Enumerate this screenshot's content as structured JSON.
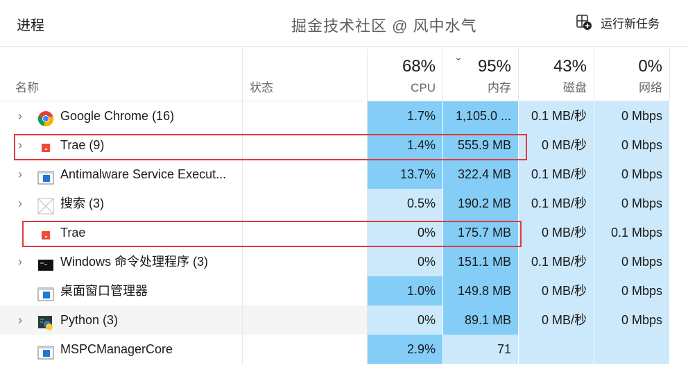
{
  "header": {
    "title": "进程",
    "run_new_task": "运行新任务"
  },
  "columns": {
    "name": {
      "label": "名称"
    },
    "status": {
      "label": "状态"
    },
    "cpu": {
      "pct": "68%",
      "label": "CPU"
    },
    "memory": {
      "pct": "95%",
      "label": "内存",
      "sorted": "descending"
    },
    "disk": {
      "pct": "43%",
      "label": "磁盘"
    },
    "network": {
      "pct": "0%",
      "label": "网络"
    }
  },
  "colors": {
    "heat_high": "#83cdf7",
    "heat_low": "#cbe9fb",
    "highlight_box": "#e0393e"
  },
  "rows": [
    {
      "name": "Google Chrome (16)",
      "icon": "chrome-icon",
      "expandable": true,
      "eco": true,
      "cpu": "1.7%",
      "mem": "1,105.0 ...",
      "disk": "0.1 MB/秒",
      "net": "0 Mbps",
      "heat": [
        "h",
        "h",
        "l",
        "l"
      ]
    },
    {
      "name": "Trae (9)",
      "icon": "trae-icon",
      "expandable": true,
      "cpu": "1.4%",
      "mem": "555.9 MB",
      "disk": "0 MB/秒",
      "net": "0 Mbps",
      "heat": [
        "h",
        "h",
        "l",
        "l"
      ]
    },
    {
      "name": "Antimalware Service Execut...",
      "icon": "app-window-icon",
      "expandable": true,
      "cpu": "13.7%",
      "mem": "322.4 MB",
      "disk": "0.1 MB/秒",
      "net": "0 Mbps",
      "heat": [
        "h",
        "h",
        "l",
        "l"
      ]
    },
    {
      "name": "搜索 (3)",
      "icon": "placeholder-icon",
      "expandable": true,
      "cpu": "0.5%",
      "mem": "190.2 MB",
      "disk": "0.1 MB/秒",
      "net": "0 Mbps",
      "heat": [
        "l",
        "h",
        "l",
        "l"
      ]
    },
    {
      "name": "Trae",
      "icon": "trae-icon",
      "expandable": false,
      "cpu": "0%",
      "mem": "175.7 MB",
      "disk": "0 MB/秒",
      "net": "0.1 Mbps",
      "heat": [
        "l",
        "h",
        "l",
        "l"
      ]
    },
    {
      "name": "Windows 命令处理程序 (3)",
      "icon": "cmd-icon",
      "expandable": true,
      "cpu": "0%",
      "mem": "151.1 MB",
      "disk": "0.1 MB/秒",
      "net": "0 Mbps",
      "heat": [
        "l",
        "h",
        "l",
        "l"
      ]
    },
    {
      "name": "桌面窗口管理器",
      "icon": "app-window-icon",
      "expandable": false,
      "cpu": "1.0%",
      "mem": "149.8 MB",
      "disk": "0 MB/秒",
      "net": "0 Mbps",
      "heat": [
        "h",
        "h",
        "l",
        "l"
      ]
    },
    {
      "name": "Python (3)",
      "icon": "python-icon",
      "expandable": true,
      "hover": true,
      "cpu": "0%",
      "mem": "89.1 MB",
      "disk": "0 MB/秒",
      "net": "0 Mbps",
      "heat": [
        "l",
        "h",
        "l",
        "l"
      ]
    },
    {
      "name": "MSPCManagerCore",
      "icon": "app-window-icon",
      "expandable": false,
      "cpu": "2.9%",
      "mem": "71",
      "disk": "",
      "net": "",
      "heat": [
        "h",
        "l",
        "l",
        "l"
      ]
    }
  ],
  "watermark": "掘金技术社区 @ 风中水气"
}
